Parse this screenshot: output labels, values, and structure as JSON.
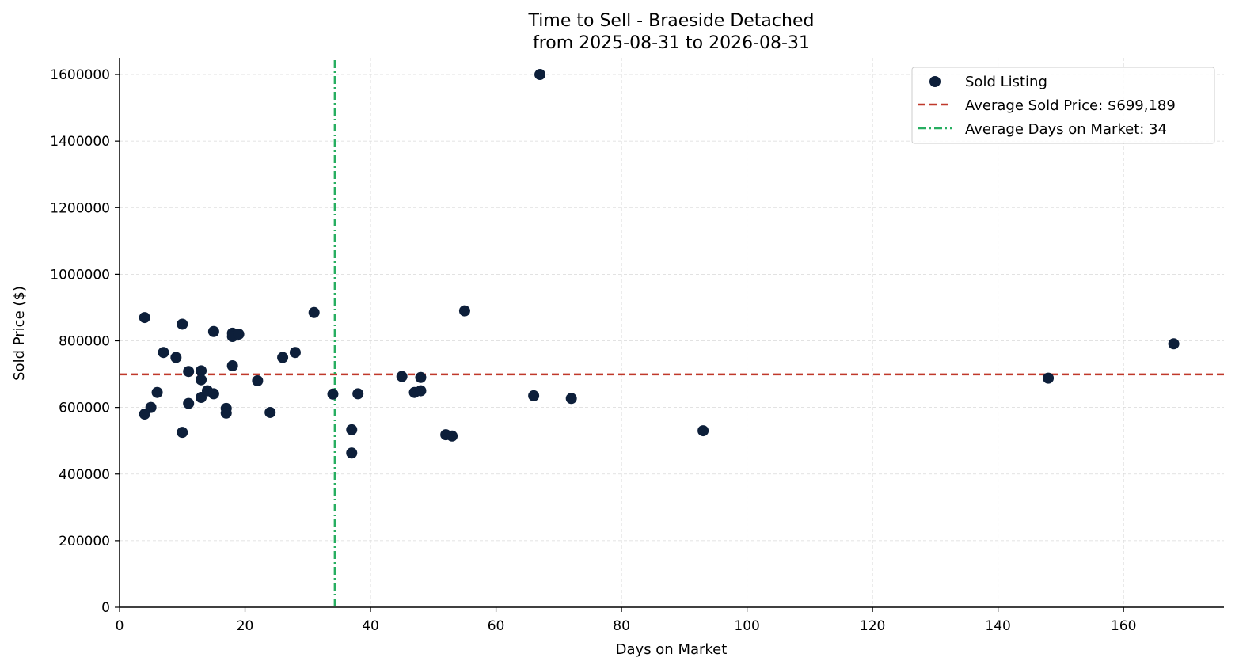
{
  "title": "Time to Sell - Braeside Detached",
  "subtitle": "from 2025-08-31 to 2026-08-31",
  "colors": {
    "points": "#0d1f3a",
    "avg_price_line": "#c0392b",
    "avg_days_line": "#27ae60",
    "grid": "#d9d9d9",
    "axis": "#000000"
  },
  "legend": {
    "position": "top-right",
    "sold_listing": "Sold Listing",
    "avg_price": "Average Sold Price: $699,189",
    "avg_days": "Average Days on Market: 34"
  },
  "chart_data": {
    "type": "scatter",
    "title": "Time to Sell - Braeside Detached",
    "subtitle": "from 2025-08-31 to 2026-08-31",
    "xlabel": "Days on Market",
    "ylabel": "Sold Price ($)",
    "xlim": [
      0,
      176
    ],
    "ylim": [
      0,
      1650000
    ],
    "xticks": [
      0,
      20,
      40,
      60,
      80,
      100,
      120,
      140,
      160
    ],
    "yticks": [
      0,
      200000,
      400000,
      600000,
      800000,
      1000000,
      1200000,
      1400000,
      1600000
    ],
    "grid": true,
    "avg_price": 699189,
    "avg_days": 34.3,
    "series": [
      {
        "name": "Sold Listing",
        "points": [
          [
            4,
            870000
          ],
          [
            4,
            580000
          ],
          [
            5,
            600000
          ],
          [
            6,
            645000
          ],
          [
            7,
            765000
          ],
          [
            9,
            750000
          ],
          [
            10,
            850000
          ],
          [
            10,
            525000
          ],
          [
            11,
            708000
          ],
          [
            11,
            612000
          ],
          [
            13,
            710000
          ],
          [
            13,
            683000
          ],
          [
            13,
            630000
          ],
          [
            14,
            650000
          ],
          [
            15,
            828000
          ],
          [
            15,
            641000
          ],
          [
            17,
            597000
          ],
          [
            17,
            583000
          ],
          [
            18,
            823000
          ],
          [
            18,
            813000
          ],
          [
            18,
            725000
          ],
          [
            19,
            820000
          ],
          [
            22,
            680000
          ],
          [
            24,
            585000
          ],
          [
            26,
            750000
          ],
          [
            28,
            765000
          ],
          [
            31,
            885000
          ],
          [
            34,
            640000
          ],
          [
            37,
            533000
          ],
          [
            37,
            463000
          ],
          [
            38,
            641000
          ],
          [
            45,
            693000
          ],
          [
            47,
            645000
          ],
          [
            48,
            690000
          ],
          [
            48,
            650000
          ],
          [
            52,
            518000
          ],
          [
            53,
            514000
          ],
          [
            55,
            890000
          ],
          [
            66,
            635000
          ],
          [
            67,
            1600000
          ],
          [
            72,
            627000
          ],
          [
            93,
            530000
          ],
          [
            148,
            688000
          ],
          [
            168,
            791000
          ]
        ]
      }
    ]
  }
}
